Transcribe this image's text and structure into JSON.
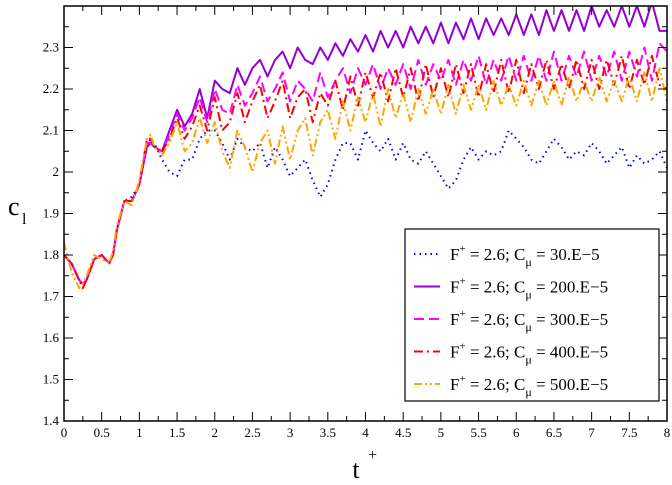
{
  "chart_data": {
    "type": "line",
    "xlabel": "t",
    "xlabel_sup": "+",
    "ylabel": "c",
    "ylabel_sub": "l",
    "xlim": [
      0,
      8
    ],
    "ylim": [
      1.4,
      2.4
    ],
    "x_ticks": [
      "0",
      "0.5",
      "1",
      "1.5",
      "2",
      "2.5",
      "3",
      "3.5",
      "4",
      "4.5",
      "5",
      "5.5",
      "6",
      "6.5",
      "7",
      "7.5",
      "8"
    ],
    "y_ticks": [
      "1.4",
      "1.5",
      "1.6",
      "1.7",
      "1.8",
      "1.9",
      "2",
      "2.1",
      "2.2",
      "2.3"
    ],
    "grid": false,
    "legend_position": "bottom-right",
    "series": [
      {
        "legend": {
          "f": "F",
          "f_sup": "+",
          "mid": " = 2.6; C",
          "c_sub": "μ",
          "value": " =  30.E−5"
        },
        "color": "#0000ff",
        "dash": "1.5,4",
        "x": [
          0,
          0.1,
          0.2,
          0.25,
          0.3,
          0.4,
          0.5,
          0.6,
          0.65,
          0.7,
          0.8,
          0.9,
          1.0,
          1.1,
          1.15,
          1.2,
          1.3,
          1.4,
          1.5,
          1.6,
          1.7,
          1.8,
          1.9,
          2.0,
          2.1,
          2.2,
          2.3,
          2.4,
          2.5,
          2.6,
          2.7,
          2.8,
          2.9,
          3.0,
          3.1,
          3.2,
          3.3,
          3.4,
          3.5,
          3.6,
          3.7,
          3.8,
          3.9,
          4.0,
          4.1,
          4.2,
          4.3,
          4.4,
          4.5,
          4.6,
          4.7,
          4.8,
          4.9,
          5.0,
          5.1,
          5.2,
          5.3,
          5.4,
          5.5,
          5.6,
          5.7,
          5.8,
          5.9,
          6.0,
          6.1,
          6.2,
          6.3,
          6.4,
          6.5,
          6.6,
          6.7,
          6.8,
          6.9,
          7.0,
          7.1,
          7.2,
          7.3,
          7.4,
          7.5,
          7.6,
          7.7,
          7.8,
          7.9,
          8.0
        ],
        "y": [
          1.8,
          1.78,
          1.74,
          1.73,
          1.74,
          1.79,
          1.8,
          1.78,
          1.8,
          1.86,
          1.93,
          1.94,
          1.97,
          2.06,
          2.08,
          2.07,
          2.03,
          2.0,
          1.99,
          2.03,
          2.03,
          2.08,
          2.1,
          2.1,
          2.07,
          2.03,
          2.08,
          2.06,
          2.05,
          2.07,
          2.01,
          2.06,
          2.03,
          1.99,
          2.01,
          2.03,
          1.98,
          1.94,
          1.97,
          2.03,
          2.07,
          2.07,
          2.03,
          2.1,
          2.07,
          2.05,
          2.08,
          2.03,
          2.07,
          2.03,
          2.02,
          2.05,
          2.02,
          1.99,
          1.96,
          1.98,
          2.03,
          2.06,
          2.03,
          2.05,
          2.04,
          2.05,
          2.1,
          2.08,
          2.06,
          2.03,
          2.02,
          2.05,
          2.08,
          2.06,
          2.03,
          2.05,
          2.04,
          2.07,
          2.05,
          2.02,
          2.04,
          2.06,
          2.01,
          2.04,
          2.02,
          2.03,
          2.05,
          2.01
        ]
      },
      {
        "legend": {
          "f": "F",
          "f_sup": "+",
          "mid": " = 2.6; C",
          "c_sub": "μ",
          "value": " = 200.E−5"
        },
        "color": "#9400d3",
        "dash": "",
        "x": [
          0,
          0.1,
          0.2,
          0.25,
          0.3,
          0.4,
          0.5,
          0.6,
          0.65,
          0.7,
          0.8,
          0.9,
          1.0,
          1.1,
          1.15,
          1.2,
          1.3,
          1.4,
          1.5,
          1.6,
          1.7,
          1.8,
          1.9,
          2.0,
          2.1,
          2.2,
          2.3,
          2.4,
          2.5,
          2.6,
          2.7,
          2.8,
          2.9,
          3.0,
          3.1,
          3.2,
          3.3,
          3.4,
          3.5,
          3.6,
          3.7,
          3.8,
          3.9,
          4.0,
          4.1,
          4.2,
          4.3,
          4.4,
          4.5,
          4.6,
          4.7,
          4.8,
          4.9,
          5.0,
          5.1,
          5.2,
          5.3,
          5.4,
          5.5,
          5.6,
          5.7,
          5.8,
          5.9,
          6.0,
          6.1,
          6.2,
          6.3,
          6.4,
          6.5,
          6.6,
          6.7,
          6.8,
          6.9,
          7.0,
          7.1,
          7.2,
          7.3,
          7.4,
          7.5,
          7.6,
          7.7,
          7.8,
          7.9,
          8.0
        ],
        "y": [
          1.8,
          1.78,
          1.74,
          1.73,
          1.74,
          1.79,
          1.8,
          1.78,
          1.8,
          1.86,
          1.93,
          1.93,
          1.97,
          2.06,
          2.07,
          2.06,
          2.05,
          2.1,
          2.15,
          2.11,
          2.14,
          2.2,
          2.13,
          2.22,
          2.2,
          2.19,
          2.25,
          2.21,
          2.25,
          2.27,
          2.23,
          2.27,
          2.29,
          2.25,
          2.3,
          2.27,
          2.26,
          2.3,
          2.27,
          2.31,
          2.28,
          2.32,
          2.29,
          2.33,
          2.29,
          2.34,
          2.3,
          2.34,
          2.3,
          2.35,
          2.31,
          2.35,
          2.31,
          2.36,
          2.31,
          2.36,
          2.32,
          2.37,
          2.32,
          2.37,
          2.33,
          2.37,
          2.33,
          2.38,
          2.33,
          2.38,
          2.33,
          2.39,
          2.34,
          2.39,
          2.34,
          2.39,
          2.34,
          2.4,
          2.35,
          2.39,
          2.35,
          2.4,
          2.35,
          2.4,
          2.35,
          2.41,
          2.34,
          2.34
        ]
      },
      {
        "legend": {
          "f": "F",
          "f_sup": "+",
          "mid": " = 2.6; C",
          "c_sub": "μ",
          "value": " = 300.E−5"
        },
        "color": "#ff00ff",
        "dash": "10,5",
        "x": [
          0,
          0.1,
          0.2,
          0.25,
          0.3,
          0.4,
          0.5,
          0.6,
          0.65,
          0.7,
          0.8,
          0.9,
          1.0,
          1.1,
          1.15,
          1.2,
          1.3,
          1.4,
          1.5,
          1.6,
          1.7,
          1.8,
          1.9,
          2.0,
          2.1,
          2.2,
          2.3,
          2.4,
          2.5,
          2.6,
          2.7,
          2.8,
          2.9,
          3.0,
          3.1,
          3.2,
          3.3,
          3.4,
          3.5,
          3.6,
          3.7,
          3.8,
          3.9,
          4.0,
          4.1,
          4.2,
          4.3,
          4.4,
          4.5,
          4.6,
          4.7,
          4.8,
          4.9,
          5.0,
          5.1,
          5.2,
          5.3,
          5.4,
          5.5,
          5.6,
          5.7,
          5.8,
          5.9,
          6.0,
          6.1,
          6.2,
          6.3,
          6.4,
          6.5,
          6.6,
          6.7,
          6.8,
          6.9,
          7.0,
          7.1,
          7.2,
          7.3,
          7.4,
          7.5,
          7.6,
          7.7,
          7.8,
          7.9,
          8.0
        ],
        "y": [
          1.8,
          1.78,
          1.74,
          1.73,
          1.74,
          1.79,
          1.8,
          1.78,
          1.8,
          1.86,
          1.93,
          1.93,
          1.97,
          2.07,
          2.07,
          2.06,
          2.05,
          2.09,
          2.14,
          2.1,
          2.13,
          2.18,
          2.12,
          2.2,
          2.15,
          2.14,
          2.21,
          2.16,
          2.19,
          2.23,
          2.17,
          2.2,
          2.24,
          2.17,
          2.22,
          2.2,
          2.17,
          2.24,
          2.18,
          2.22,
          2.25,
          2.19,
          2.25,
          2.21,
          2.26,
          2.2,
          2.25,
          2.21,
          2.26,
          2.2,
          2.27,
          2.21,
          2.26,
          2.22,
          2.27,
          2.21,
          2.27,
          2.22,
          2.28,
          2.21,
          2.27,
          2.22,
          2.28,
          2.22,
          2.28,
          2.22,
          2.28,
          2.22,
          2.29,
          2.22,
          2.28,
          2.23,
          2.29,
          2.22,
          2.28,
          2.23,
          2.29,
          2.22,
          2.29,
          2.23,
          2.3,
          2.22,
          2.31,
          2.29
        ]
      },
      {
        "legend": {
          "f": "F",
          "f_sup": "+",
          "mid": " = 2.6; C",
          "c_sub": "μ",
          "value": " = 400.E−5"
        },
        "color": "#ff0000",
        "dash": "9,4,2,4",
        "x": [
          0,
          0.1,
          0.2,
          0.25,
          0.3,
          0.4,
          0.5,
          0.6,
          0.65,
          0.7,
          0.8,
          0.9,
          1.0,
          1.1,
          1.15,
          1.2,
          1.3,
          1.4,
          1.5,
          1.6,
          1.7,
          1.8,
          1.9,
          2.0,
          2.1,
          2.2,
          2.3,
          2.4,
          2.5,
          2.6,
          2.7,
          2.8,
          2.9,
          3.0,
          3.1,
          3.2,
          3.3,
          3.4,
          3.5,
          3.6,
          3.7,
          3.8,
          3.9,
          4.0,
          4.1,
          4.2,
          4.3,
          4.4,
          4.5,
          4.6,
          4.7,
          4.8,
          4.9,
          5.0,
          5.1,
          5.2,
          5.3,
          5.4,
          5.5,
          5.6,
          5.7,
          5.8,
          5.9,
          6.0,
          6.1,
          6.2,
          6.3,
          6.4,
          6.5,
          6.6,
          6.7,
          6.8,
          6.9,
          7.0,
          7.1,
          7.2,
          7.3,
          7.4,
          7.5,
          7.6,
          7.7,
          7.8,
          7.9,
          8.0
        ],
        "y": [
          1.8,
          1.78,
          1.74,
          1.72,
          1.74,
          1.79,
          1.8,
          1.78,
          1.8,
          1.86,
          1.93,
          1.93,
          1.97,
          2.08,
          2.08,
          2.06,
          2.05,
          2.08,
          2.13,
          2.08,
          2.11,
          2.16,
          2.1,
          2.18,
          2.1,
          2.12,
          2.19,
          2.12,
          2.17,
          2.21,
          2.13,
          2.17,
          2.22,
          2.13,
          2.18,
          2.2,
          2.12,
          2.19,
          2.16,
          2.22,
          2.15,
          2.23,
          2.16,
          2.24,
          2.18,
          2.24,
          2.17,
          2.25,
          2.18,
          2.25,
          2.17,
          2.26,
          2.18,
          2.25,
          2.18,
          2.26,
          2.19,
          2.26,
          2.18,
          2.26,
          2.19,
          2.27,
          2.19,
          2.27,
          2.19,
          2.26,
          2.2,
          2.27,
          2.2,
          2.26,
          2.2,
          2.27,
          2.2,
          2.27,
          2.2,
          2.27,
          2.21,
          2.28,
          2.2,
          2.27,
          2.21,
          2.28,
          2.21,
          2.2
        ]
      },
      {
        "legend": {
          "f": "F",
          "f_sup": "+",
          "mid": " = 2.6; C",
          "c_sub": "μ",
          "value": " = 500.E−5"
        },
        "color": "#ffa500",
        "dash": "8,3,2,3,2,3",
        "x": [
          0,
          0.1,
          0.2,
          0.25,
          0.3,
          0.4,
          0.5,
          0.6,
          0.65,
          0.7,
          0.8,
          0.9,
          1.0,
          1.1,
          1.15,
          1.2,
          1.3,
          1.4,
          1.5,
          1.6,
          1.7,
          1.8,
          1.9,
          2.0,
          2.1,
          2.2,
          2.3,
          2.4,
          2.5,
          2.6,
          2.7,
          2.8,
          2.9,
          3.0,
          3.1,
          3.2,
          3.3,
          3.4,
          3.5,
          3.6,
          3.7,
          3.8,
          3.9,
          4.0,
          4.1,
          4.2,
          4.3,
          4.4,
          4.5,
          4.6,
          4.7,
          4.8,
          4.9,
          5.0,
          5.1,
          5.2,
          5.3,
          5.4,
          5.5,
          5.6,
          5.7,
          5.8,
          5.9,
          6.0,
          6.1,
          6.2,
          6.3,
          6.4,
          6.5,
          6.6,
          6.7,
          6.8,
          6.9,
          7.0,
          7.1,
          7.2,
          7.3,
          7.4,
          7.5,
          7.6,
          7.7,
          7.8,
          7.9,
          8.0
        ],
        "y": [
          1.83,
          1.76,
          1.72,
          1.73,
          1.75,
          1.8,
          1.79,
          1.78,
          1.81,
          1.87,
          1.93,
          1.92,
          1.98,
          2.08,
          2.09,
          2.06,
          2.04,
          2.07,
          2.12,
          2.05,
          2.07,
          2.13,
          2.07,
          2.12,
          2.05,
          2.01,
          2.1,
          2.06,
          2.0,
          2.07,
          2.1,
          2.02,
          2.11,
          2.03,
          2.1,
          2.13,
          2.04,
          2.12,
          2.15,
          2.08,
          2.17,
          2.1,
          2.18,
          2.12,
          2.19,
          2.11,
          2.2,
          2.13,
          2.19,
          2.12,
          2.2,
          2.14,
          2.2,
          2.14,
          2.21,
          2.14,
          2.21,
          2.15,
          2.21,
          2.15,
          2.22,
          2.16,
          2.21,
          2.16,
          2.22,
          2.16,
          2.22,
          2.16,
          2.22,
          2.16,
          2.23,
          2.17,
          2.22,
          2.17,
          2.23,
          2.17,
          2.22,
          2.17,
          2.23,
          2.17,
          2.24,
          2.17,
          2.25,
          2.17
        ]
      }
    ]
  }
}
